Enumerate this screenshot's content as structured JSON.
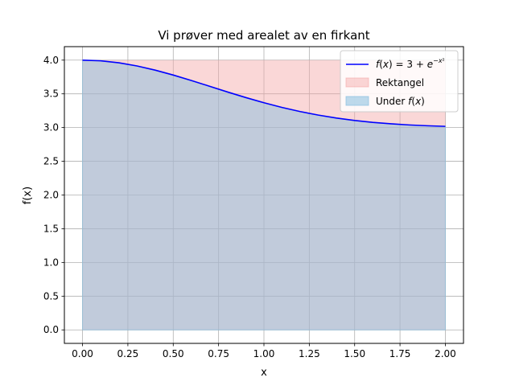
{
  "chart_data": {
    "type": "area",
    "title": "Vi prøver med arealet av en firkant",
    "xlabel": "x",
    "ylabel": "f(x)",
    "xlim": [
      -0.1,
      2.1
    ],
    "ylim": [
      -0.2,
      4.2
    ],
    "x_ticks": [
      "0.00",
      "0.25",
      "0.50",
      "0.75",
      "1.00",
      "1.25",
      "1.50",
      "1.75",
      "2.00"
    ],
    "y_ticks": [
      "0.0",
      "0.5",
      "1.0",
      "1.5",
      "2.0",
      "2.5",
      "3.0",
      "3.5",
      "4.0"
    ],
    "grid": true,
    "legend_position": "top-right",
    "series": [
      {
        "name": "f(x) = 3 + e^{-x²}",
        "kind": "line",
        "color": "#0000ff",
        "x": [
          0.0,
          0.1,
          0.2,
          0.3,
          0.4,
          0.5,
          0.6,
          0.7,
          0.8,
          0.9,
          1.0,
          1.1,
          1.2,
          1.3,
          1.4,
          1.5,
          1.6,
          1.7,
          1.8,
          1.9,
          2.0
        ],
        "y": [
          4.0,
          3.99,
          3.961,
          3.914,
          3.852,
          3.779,
          3.698,
          3.613,
          3.527,
          3.445,
          3.368,
          3.298,
          3.237,
          3.185,
          3.141,
          3.105,
          3.077,
          3.056,
          3.039,
          3.027,
          3.018
        ]
      },
      {
        "name": "Rektangel",
        "kind": "area",
        "color": "#f4a6a6",
        "x": [
          0.0,
          2.0
        ],
        "y": [
          4.0,
          4.0
        ]
      },
      {
        "name": "Under f(x)",
        "kind": "area",
        "color": "#87bfe0"
      }
    ]
  }
}
